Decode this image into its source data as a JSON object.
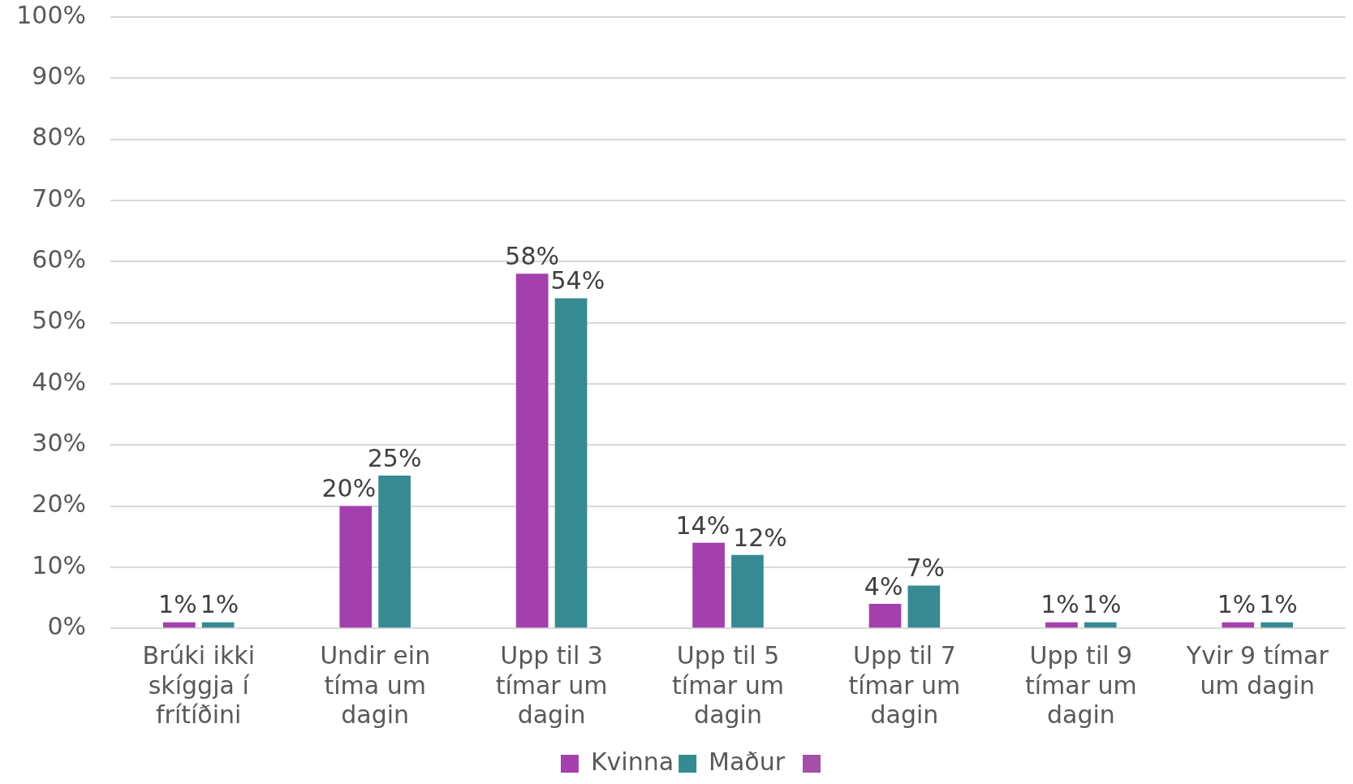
{
  "chart_data": {
    "type": "bar",
    "categories": [
      "Brúki ikki skíggja í frítíðini",
      "Undir ein tíma um dagin",
      "Upp til 3 tímar um dagin",
      "Upp til 5 tímar um dagin",
      "Upp til 7 tímar um dagin",
      "Upp til 9 tímar um dagin",
      "Yvir 9 tímar um dagin"
    ],
    "series": [
      {
        "name": "Kvinna",
        "color": "#a43fae",
        "values": [
          1,
          20,
          58,
          14,
          4,
          1,
          1
        ],
        "value_labels": [
          "1%",
          "20%",
          "58%",
          "14%",
          "4%",
          "1%",
          "1%"
        ]
      },
      {
        "name": "Maður",
        "color": "#378a91",
        "values": [
          1,
          25,
          54,
          12,
          7,
          1,
          1
        ],
        "value_labels": [
          "1%",
          "25%",
          "54%",
          "12%",
          "7%",
          "1%",
          "1%"
        ]
      }
    ],
    "ylim": [
      0,
      100
    ],
    "yticks": [
      {
        "value": 0,
        "label": "0%"
      },
      {
        "value": 10,
        "label": "10%"
      },
      {
        "value": 20,
        "label": "20%"
      },
      {
        "value": 30,
        "label": "30%"
      },
      {
        "value": 40,
        "label": "40%"
      },
      {
        "value": 50,
        "label": "50%"
      },
      {
        "value": 60,
        "label": "60%"
      },
      {
        "value": 70,
        "label": "70%"
      },
      {
        "value": 80,
        "label": "80%"
      },
      {
        "value": 90,
        "label": "90%"
      },
      {
        "value": 100,
        "label": "100%"
      }
    ],
    "grid": "y",
    "legend": "bottom"
  }
}
